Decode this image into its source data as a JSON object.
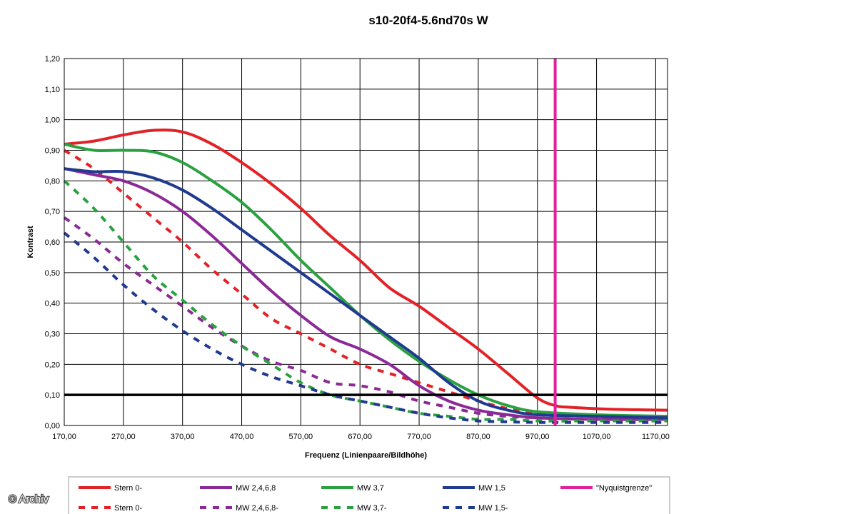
{
  "chart_data": {
    "type": "line",
    "title": "s10-20f4-5.6nd70s W",
    "xlabel": "Frequenz (Linienpaare/Bildhöhe)",
    "ylabel": "Kontrast",
    "xlim": [
      170,
      1190
    ],
    "ylim": [
      0,
      1.2
    ],
    "xticks": [
      170,
      270,
      370,
      470,
      570,
      670,
      770,
      870,
      970,
      1070,
      1170
    ],
    "xtick_labels": [
      "170,00",
      "270,00",
      "370,00",
      "470,00",
      "570,00",
      "670,00",
      "770,00",
      "870,00",
      "970,00",
      "1070,00",
      "1170,00"
    ],
    "yticks": [
      0,
      0.1,
      0.2,
      0.3,
      0.4,
      0.5,
      0.6,
      0.7,
      0.8,
      0.9,
      1.0,
      1.1,
      1.2
    ],
    "ytick_labels": [
      "0,00",
      "0,10",
      "0,20",
      "0,30",
      "0,40",
      "0,50",
      "0,60",
      "0,70",
      "0,80",
      "0,90",
      "1,00",
      "1,10",
      "1,20"
    ],
    "grid": true,
    "legend_position": "bottom",
    "reference_lines": [
      {
        "orientation": "horizontal",
        "value": 0.1,
        "color": "#000000"
      },
      {
        "orientation": "vertical",
        "value": 1000,
        "color": "#e0219a",
        "legend": "\"Nyquistgrenze\""
      }
    ],
    "series": [
      {
        "name": "Stern 0-",
        "color": "#e32227",
        "dashed": false,
        "x": [
          170,
          220,
          270,
          320,
          370,
          420,
          470,
          520,
          570,
          620,
          670,
          720,
          770,
          820,
          870,
          920,
          970,
          1000,
          1020,
          1070,
          1120,
          1190
        ],
        "y": [
          0.92,
          0.93,
          0.95,
          0.965,
          0.96,
          0.92,
          0.86,
          0.79,
          0.71,
          0.62,
          0.54,
          0.45,
          0.39,
          0.32,
          0.25,
          0.17,
          0.09,
          0.065,
          0.06,
          0.055,
          0.052,
          0.05
        ]
      },
      {
        "name": "Stern 0-",
        "color": "#e32227",
        "dashed": true,
        "x": [
          170,
          220,
          270,
          320,
          370,
          420,
          470,
          520,
          570,
          620,
          670,
          720,
          770,
          820,
          870,
          920,
          970,
          1070,
          1190
        ],
        "y": [
          0.9,
          0.84,
          0.76,
          0.68,
          0.6,
          0.51,
          0.43,
          0.35,
          0.3,
          0.25,
          0.2,
          0.17,
          0.14,
          0.11,
          0.08,
          0.055,
          0.04,
          0.03,
          0.025
        ]
      },
      {
        "name": "MW 2,4,6,8",
        "color": "#8b2a96",
        "dashed": false,
        "x": [
          170,
          220,
          270,
          320,
          370,
          420,
          470,
          520,
          570,
          620,
          670,
          720,
          770,
          820,
          870,
          920,
          970,
          1070,
          1190
        ],
        "y": [
          0.84,
          0.82,
          0.8,
          0.76,
          0.7,
          0.62,
          0.53,
          0.44,
          0.36,
          0.29,
          0.25,
          0.2,
          0.13,
          0.08,
          0.05,
          0.035,
          0.025,
          0.02,
          0.02
        ]
      },
      {
        "name": "MW 2,4,6,8-",
        "color": "#8b2a96",
        "dashed": true,
        "x": [
          170,
          220,
          270,
          320,
          370,
          420,
          470,
          520,
          570,
          620,
          670,
          720,
          770,
          820,
          870,
          920,
          970,
          1070,
          1190
        ],
        "y": [
          0.68,
          0.61,
          0.53,
          0.46,
          0.39,
          0.32,
          0.26,
          0.21,
          0.18,
          0.14,
          0.13,
          0.11,
          0.08,
          0.06,
          0.04,
          0.03,
          0.025,
          0.02,
          0.02
        ]
      },
      {
        "name": "MW 3,7",
        "color": "#2aa140",
        "dashed": false,
        "x": [
          170,
          220,
          270,
          320,
          370,
          420,
          470,
          520,
          570,
          620,
          670,
          720,
          770,
          820,
          870,
          920,
          970,
          1070,
          1190
        ],
        "y": [
          0.92,
          0.9,
          0.9,
          0.895,
          0.86,
          0.8,
          0.73,
          0.64,
          0.54,
          0.45,
          0.36,
          0.28,
          0.21,
          0.15,
          0.1,
          0.065,
          0.045,
          0.035,
          0.03
        ]
      },
      {
        "name": "MW 3,7-",
        "color": "#2aa140",
        "dashed": true,
        "x": [
          170,
          220,
          270,
          320,
          370,
          420,
          470,
          520,
          570,
          620,
          670,
          720,
          770,
          820,
          870,
          920,
          970,
          1070,
          1190
        ],
        "y": [
          0.8,
          0.71,
          0.6,
          0.49,
          0.41,
          0.33,
          0.26,
          0.2,
          0.14,
          0.1,
          0.08,
          0.06,
          0.04,
          0.03,
          0.02,
          0.02,
          0.015,
          0.015,
          0.015
        ]
      },
      {
        "name": "MW 1,5",
        "color": "#1f3a8f",
        "dashed": false,
        "x": [
          170,
          220,
          270,
          320,
          370,
          420,
          470,
          520,
          570,
          620,
          670,
          720,
          770,
          820,
          870,
          920,
          970,
          1070,
          1190
        ],
        "y": [
          0.84,
          0.83,
          0.83,
          0.81,
          0.77,
          0.71,
          0.64,
          0.57,
          0.5,
          0.43,
          0.36,
          0.29,
          0.22,
          0.14,
          0.08,
          0.05,
          0.035,
          0.03,
          0.025
        ]
      },
      {
        "name": "MW 1,5-",
        "color": "#1f3a8f",
        "dashed": true,
        "x": [
          170,
          220,
          270,
          320,
          370,
          420,
          470,
          520,
          570,
          620,
          670,
          720,
          770,
          820,
          870,
          920,
          970,
          1070,
          1190
        ],
        "y": [
          0.63,
          0.55,
          0.46,
          0.38,
          0.31,
          0.25,
          0.2,
          0.16,
          0.13,
          0.1,
          0.08,
          0.06,
          0.04,
          0.025,
          0.015,
          0.012,
          0.01,
          0.01,
          0.01
        ]
      }
    ]
  },
  "credit": "© Archiv"
}
